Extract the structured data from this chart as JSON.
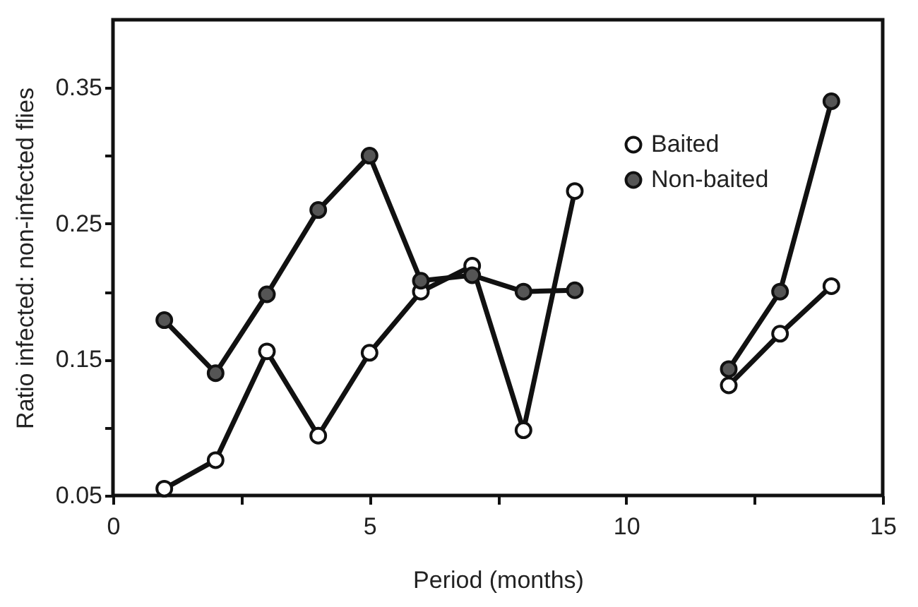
{
  "chart_data": {
    "type": "line",
    "xlabel": "Period (months)",
    "ylabel": "Ratio infected: non-infected flies",
    "x": [
      1,
      2,
      3,
      4,
      5,
      6,
      7,
      8,
      9,
      10,
      11,
      12,
      13,
      14
    ],
    "series": [
      {
        "name": "Baited",
        "color": "#ffffff",
        "values": [
          0.055,
          0.076,
          0.156,
          0.094,
          0.155,
          0.2,
          0.219,
          0.098,
          0.274,
          null,
          null,
          0.131,
          0.169,
          0.204
        ]
      },
      {
        "name": "Non-baited",
        "color": "#555555",
        "values": [
          0.179,
          0.14,
          0.198,
          0.26,
          0.3,
          0.208,
          0.212,
          0.2,
          0.201,
          null,
          null,
          0.143,
          0.2,
          0.34
        ]
      }
    ],
    "xlim": [
      0,
      15
    ],
    "xticks": [
      0,
      {
        "value": 2.5,
        "label": null
      },
      5,
      {
        "value": 7.5,
        "label": null
      },
      10,
      {
        "value": 12.5,
        "label": null
      },
      15
    ],
    "ylim": [
      0.05,
      0.4
    ],
    "yticks": [
      0.05,
      {
        "value": 0.1,
        "label": null
      },
      0.15,
      {
        "value": 0.2,
        "label": null
      },
      0.25,
      {
        "value": 0.3,
        "label": null
      },
      0.35
    ],
    "grid": false,
    "legend": "top right",
    "marker": "circle",
    "line_style": "solid"
  }
}
